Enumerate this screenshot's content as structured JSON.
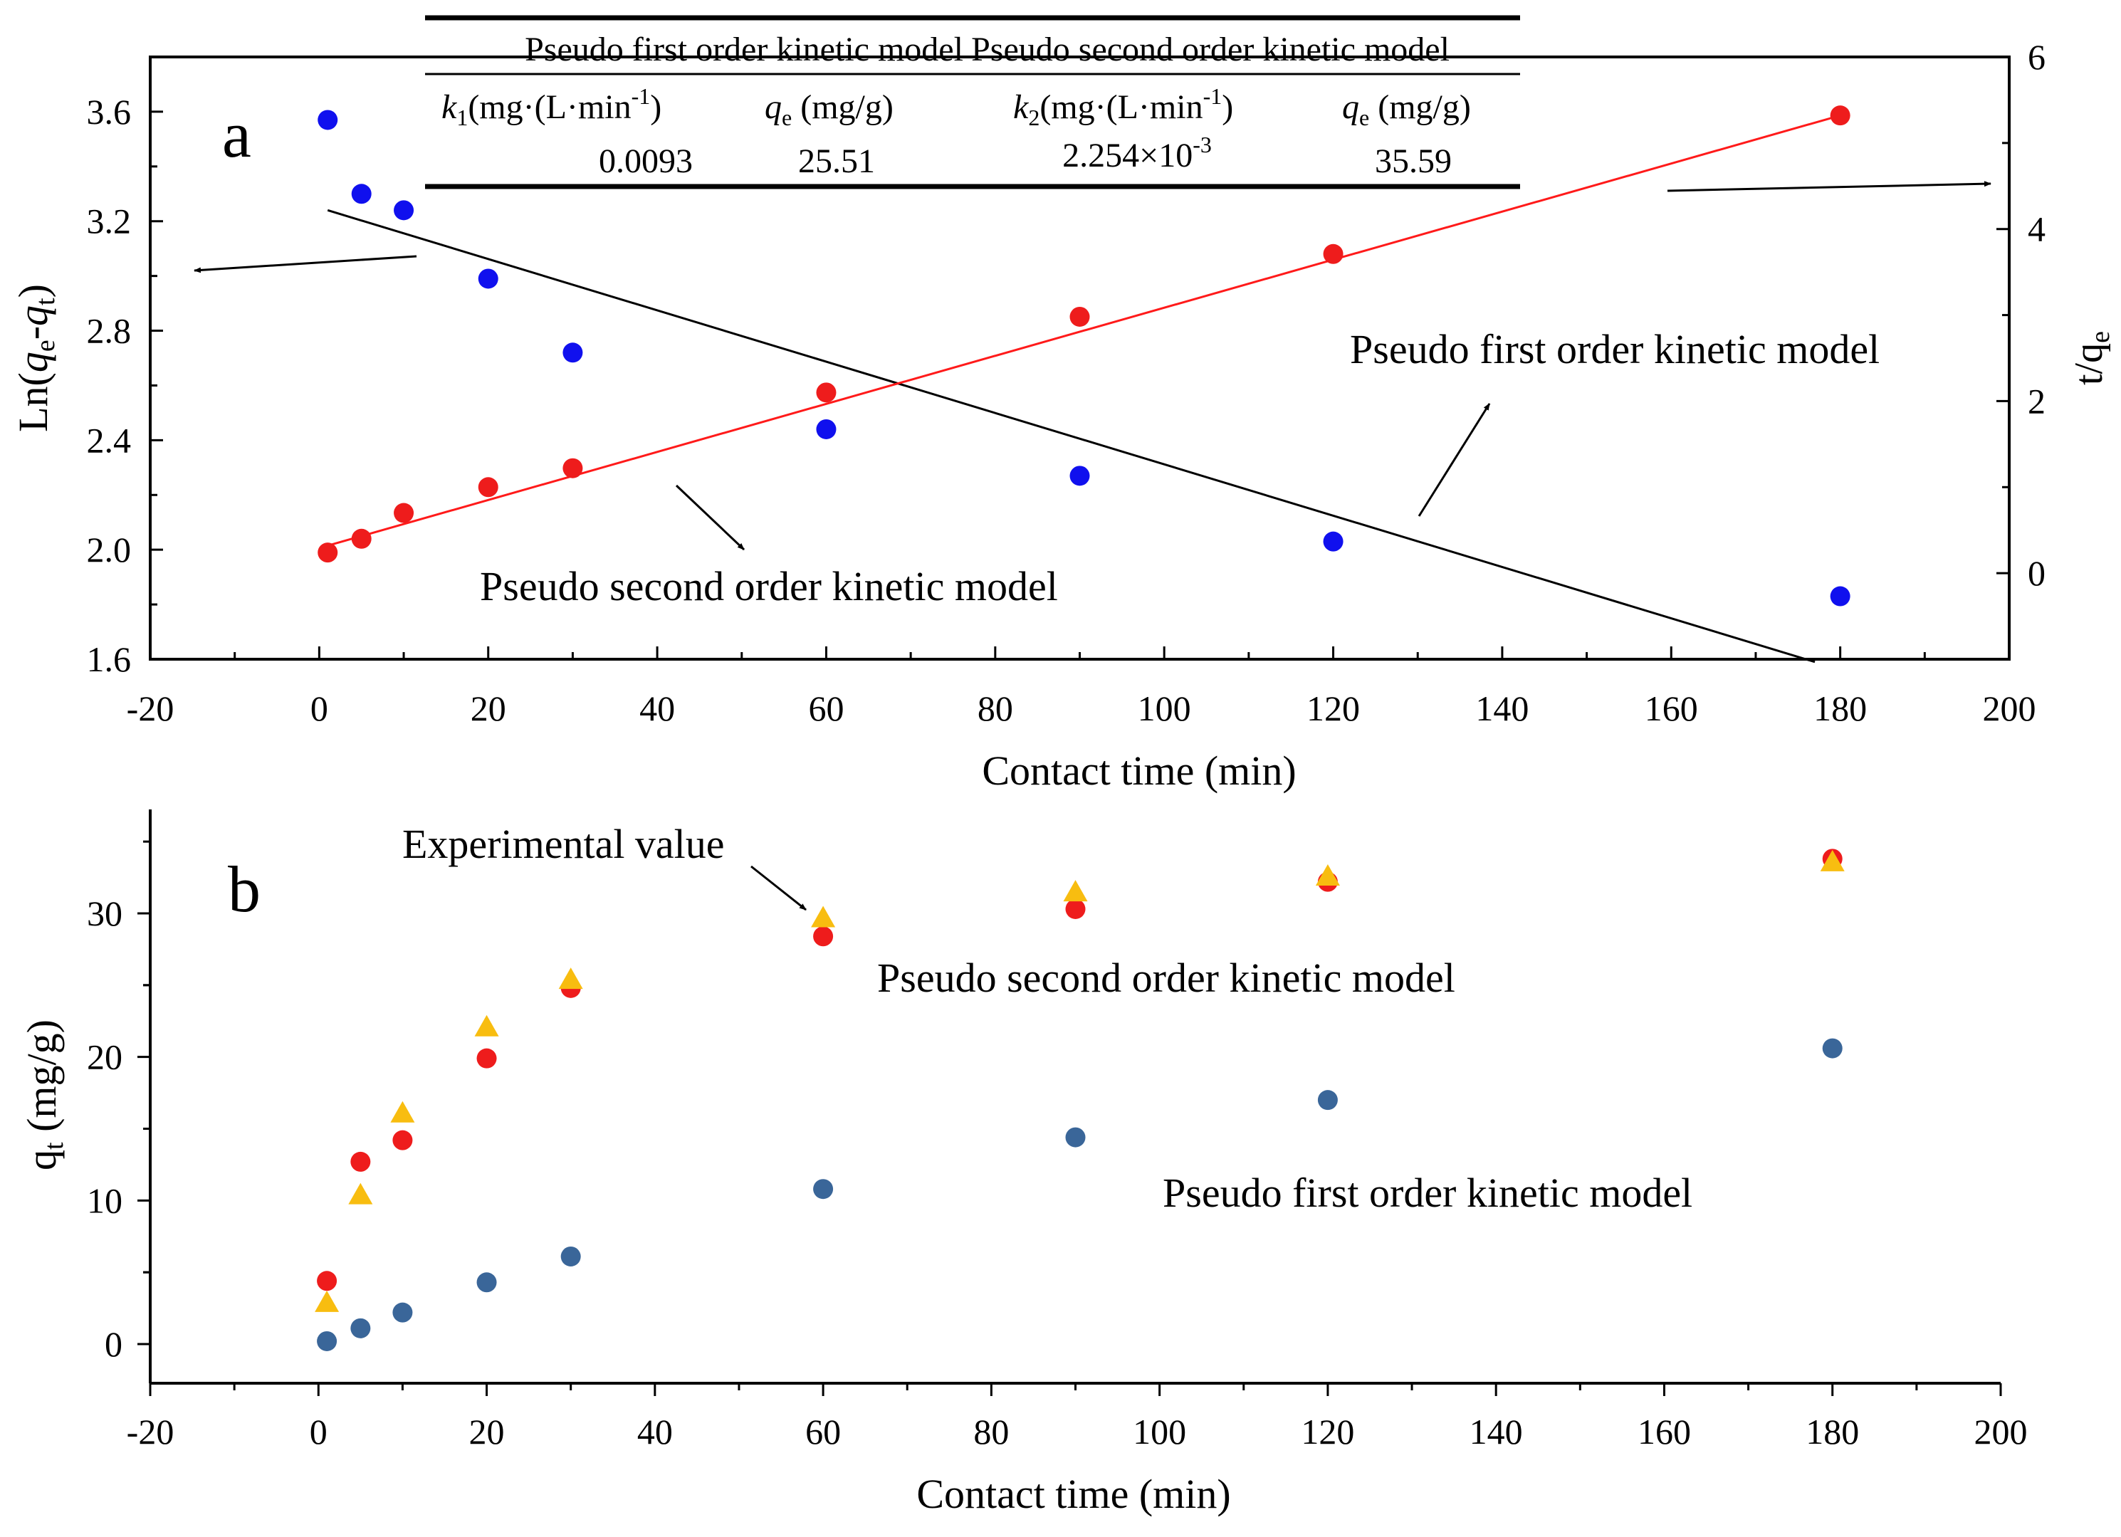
{
  "colors": {
    "red": "#ee1c1c",
    "blue": "#1010ee",
    "steel": "#3a6699",
    "gold": "#f8bd10",
    "red_line": "#ff1a1a",
    "black": "#000000"
  },
  "chart_data": [
    {
      "type": "scatter",
      "panel_label": "a",
      "xlabel": "Contact time (min)",
      "ylabel_left": "Ln(qe-qt)",
      "ylabel_right": "t/qe",
      "xlim": [
        -20,
        200
      ],
      "ylim_left": [
        1.6,
        3.8
      ],
      "ylim_right": [
        -1,
        6
      ],
      "xticks": [
        -20,
        0,
        20,
        40,
        60,
        80,
        100,
        120,
        140,
        160,
        180,
        200
      ],
      "yticks_left": [
        1.6,
        2.0,
        2.4,
        2.8,
        3.2,
        3.6
      ],
      "yticks_right": [
        0,
        2,
        4,
        6
      ],
      "series": [
        {
          "name": "Pseudo first order kinetic model",
          "axis": "left",
          "color_key": "blue",
          "x": [
            1,
            5,
            10,
            20,
            30,
            60,
            90,
            120,
            180
          ],
          "values": [
            3.57,
            3.3,
            3.24,
            2.99,
            2.72,
            2.44,
            2.27,
            2.03,
            1.83
          ],
          "fit_line": {
            "x": [
              1,
              177
            ],
            "y": [
              3.24,
              1.59
            ]
          }
        },
        {
          "name": "Pseudo second order kinetic model",
          "axis": "right",
          "color_key": "red",
          "x": [
            1,
            5,
            10,
            20,
            30,
            60,
            90,
            120,
            180
          ],
          "values": [
            0.24,
            0.4,
            0.7,
            1.0,
            1.22,
            2.1,
            2.98,
            3.71,
            5.32
          ],
          "fit_line": {
            "x": [
              1,
              180
            ],
            "y": [
              0.32,
              5.32
            ]
          }
        }
      ],
      "annotations": {
        "first_order": "Pseudo first order kinetic model",
        "second_order": "Pseudo second order kinetic model"
      },
      "table": {
        "header_first": "Pseudo first order kinetic model",
        "header_second": "Pseudo second order kinetic model",
        "k1_label": "k",
        "k1_sub": "1",
        "k1_unit": "(mg·(L·min",
        "k1_exp": "-1",
        "k1_close": ")",
        "qe_label": "q",
        "qe_sub": "e",
        "qe_unit": "(mg/g)",
        "k2_label": "k",
        "k2_sub": "2",
        "k2_unit": "(mg·(L·min",
        "k2_exp": "-1",
        "k2_close": ")",
        "k1_value": "0.0093",
        "qe1_value": "25.51",
        "k2_value_base": "2.254×10",
        "k2_value_exp": "-3",
        "qe2_value": "35.59"
      }
    },
    {
      "type": "scatter",
      "panel_label": "b",
      "xlabel": "Contact time (min)",
      "ylabel": "qt (mg/g)",
      "xlim": [
        -20,
        200
      ],
      "ylim": [
        -2.5,
        37
      ],
      "xticks": [
        -20,
        0,
        20,
        40,
        60,
        80,
        100,
        120,
        140,
        160,
        180,
        200
      ],
      "yticks": [
        0,
        10,
        20,
        30
      ],
      "series": [
        {
          "name": "Pseudo second order kinetic model",
          "color_key": "red",
          "marker": "circle",
          "x": [
            1,
            5,
            10,
            20,
            30,
            60,
            90,
            120,
            180
          ],
          "values": [
            4.4,
            12.7,
            14.2,
            19.9,
            24.8,
            28.4,
            30.3,
            32.2,
            33.8
          ]
        },
        {
          "name": "Experimental value",
          "color_key": "gold",
          "marker": "triangle",
          "x": [
            1,
            5,
            10,
            20,
            30,
            60,
            90,
            120,
            180
          ],
          "values": [
            2.8,
            10.3,
            16.0,
            22.0,
            25.3,
            29.6,
            31.4,
            32.5,
            33.5
          ]
        },
        {
          "name": "Pseudo first order kinetic model",
          "color_key": "steel",
          "marker": "circle",
          "x": [
            1,
            5,
            10,
            20,
            30,
            60,
            90,
            120,
            180
          ],
          "values": [
            0.2,
            1.1,
            2.2,
            4.3,
            6.1,
            10.8,
            14.4,
            17.0,
            20.6
          ]
        }
      ],
      "annotations": {
        "experimental": "Experimental value",
        "second_order": "Pseudo second order kinetic model",
        "first_order": "Pseudo first order kinetic model"
      }
    }
  ]
}
